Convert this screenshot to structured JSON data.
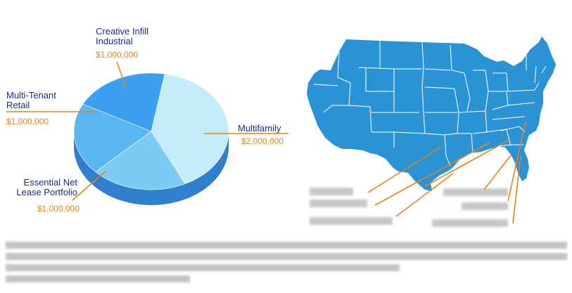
{
  "chart_data": {
    "type": "pie",
    "slices": [
      {
        "label_lines": [
          "Multifamily"
        ],
        "value": 2000000,
        "value_label": "$2,000,000",
        "color": "#c4ecfb"
      },
      {
        "label_lines": [
          "Essential Net",
          "Lease Portfolio"
        ],
        "value": 1000000,
        "value_label": "$1,000,000",
        "color": "#7ccbf3"
      },
      {
        "label_lines": [
          "Multi-Tenant",
          "Retail"
        ],
        "value": 1000000,
        "value_label": "$1,000,000",
        "color": "#5ab6ee"
      },
      {
        "label_lines": [
          "Creative Infill",
          "Industrial"
        ],
        "value": 1000000,
        "value_label": "$1,000,000",
        "color": "#3d9ff0"
      }
    ],
    "three_d": true,
    "side_color": "#2f7fcc",
    "label_name_color": "#1c2a8c",
    "label_value_color": "#e8821c",
    "leader_color": "#e8821c"
  },
  "map": {
    "name": "united-states-map",
    "fill_color": "#2a93d6",
    "border_color": "#ffffff"
  }
}
